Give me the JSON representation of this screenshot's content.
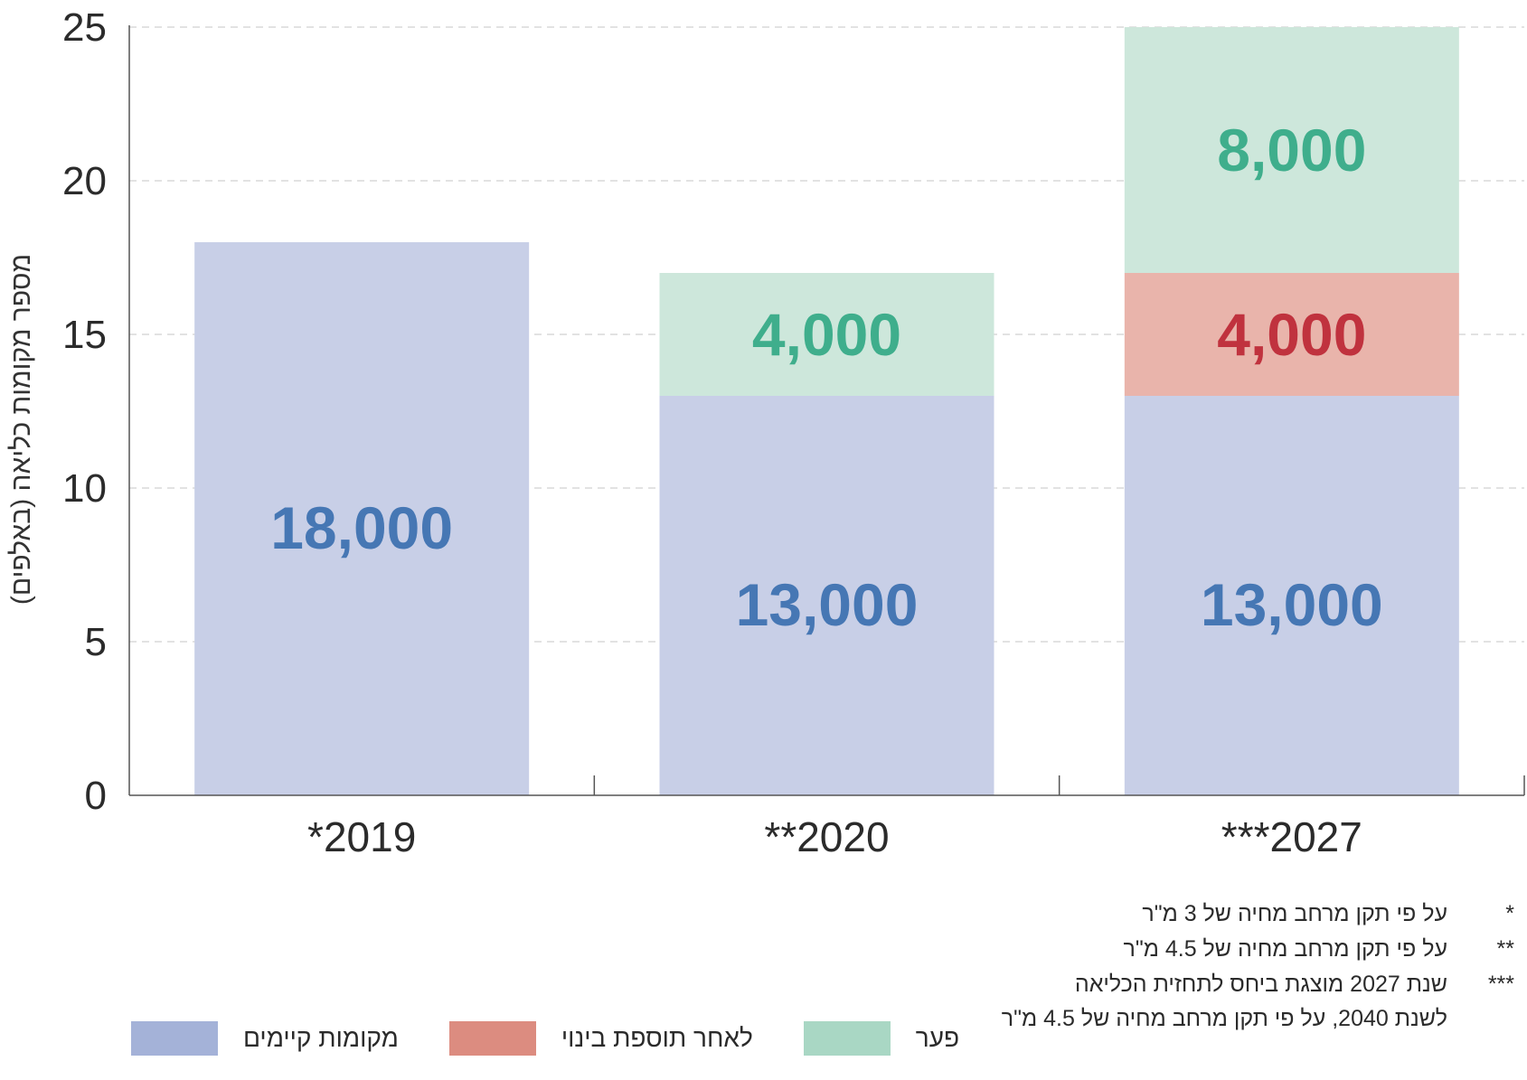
{
  "chart_data": {
    "type": "bar",
    "stacked": true,
    "categories": [
      "2019*",
      "2020**",
      "2027***"
    ],
    "category_labels": [
      "*2019",
      "**2020",
      "***2027"
    ],
    "ylabel": "מספר מקומות כליאה (באלפים)",
    "ylim": [
      0,
      25
    ],
    "yticks": [
      0,
      5,
      10,
      15,
      20,
      25
    ],
    "grid": true,
    "series": [
      {
        "name": "מקומות קיימים",
        "color": "#c8cfe7",
        "legend_color": "#a4b2d8",
        "label_color": "#4677b4",
        "values": [
          18,
          13,
          13
        ],
        "labels": [
          "18,000",
          "13,000",
          "13,000"
        ]
      },
      {
        "name": "לאחר תוספת בינוי",
        "color": "#e9b4ab",
        "legend_color": "#dc8c80",
        "label_color": "#c0323e",
        "values": [
          0,
          0,
          4
        ],
        "labels": [
          "",
          "",
          "4,000"
        ]
      },
      {
        "name": "פער",
        "color": "#cde7db",
        "legend_color": "#a9d7c4",
        "label_color": "#3fae8c",
        "values": [
          0,
          4,
          8
        ],
        "labels": [
          "",
          "4,000",
          "8,000"
        ]
      }
    ]
  },
  "notes": [
    {
      "mark": "*",
      "text": "על פי תקן מרחב מחיה של 3 מ\"ר"
    },
    {
      "mark": "**",
      "text": "על פי תקן מרחב מחיה של 4.5 מ\"ר"
    },
    {
      "mark": "***",
      "text": "שנת 2027 מוצגת ביחס לתחזית הכליאה"
    },
    {
      "mark": "",
      "text": "לשנת 2040, על פי תקן מרחב מחיה של 4.5 מ\"ר"
    }
  ]
}
